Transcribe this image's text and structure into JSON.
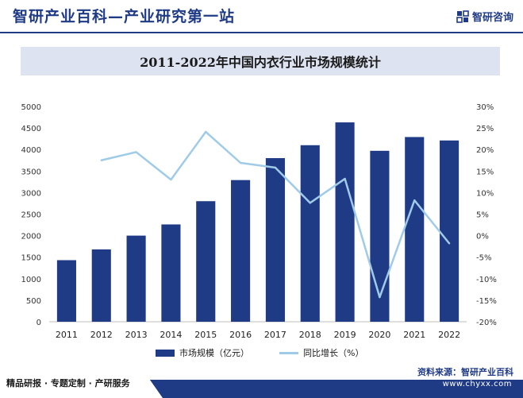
{
  "header": {
    "title": "智研产业百科—产业研究第一站",
    "logo_text": "智研咨询"
  },
  "chart_title": "2011-2022年中国内衣行业市场规模统计",
  "chart_data": {
    "type": "bar+line",
    "title": "2011-2022年中国内衣行业市场规模统计",
    "categories": [
      "2011",
      "2012",
      "2013",
      "2014",
      "2015",
      "2016",
      "2017",
      "2018",
      "2019",
      "2020",
      "2021",
      "2022"
    ],
    "series": [
      {
        "name": "市场规模（亿元）",
        "type": "bar",
        "axis": "left",
        "values": [
          1430,
          1680,
          2000,
          2260,
          2800,
          3290,
          3800,
          4100,
          4630,
          3970,
          4290,
          4210
        ]
      },
      {
        "name": "同比增长（%）",
        "type": "line",
        "axis": "right",
        "values": [
          null,
          17.5,
          19.4,
          13.0,
          24.1,
          16.9,
          15.8,
          7.6,
          13.2,
          -14.3,
          8.2,
          -1.8
        ]
      }
    ],
    "ylim_left": [
      0,
      5000
    ],
    "yticks_left": [
      "0",
      "500",
      "1000",
      "1500",
      "2000",
      "2500",
      "3000",
      "3500",
      "4000",
      "4500",
      "5000"
    ],
    "ylim_right": [
      -20,
      30
    ],
    "yticks_right": [
      "-20%",
      "-15%",
      "-10%",
      "-5%",
      "0%",
      "5%",
      "10%",
      "15%",
      "20%",
      "25%",
      "30%"
    ],
    "grid": false,
    "legend_position": "bottom",
    "colors": {
      "bar": "#1f3b86",
      "line": "#9fcbe8"
    }
  },
  "legend": {
    "bar_label": "市场规模（亿元）",
    "line_label": "同比增长（%）"
  },
  "footer": {
    "left_text": "精品研报 · 专题定制 · 产研服务",
    "source_text": "资料来源：智研产业百科",
    "url": "www.chyxx.com"
  }
}
